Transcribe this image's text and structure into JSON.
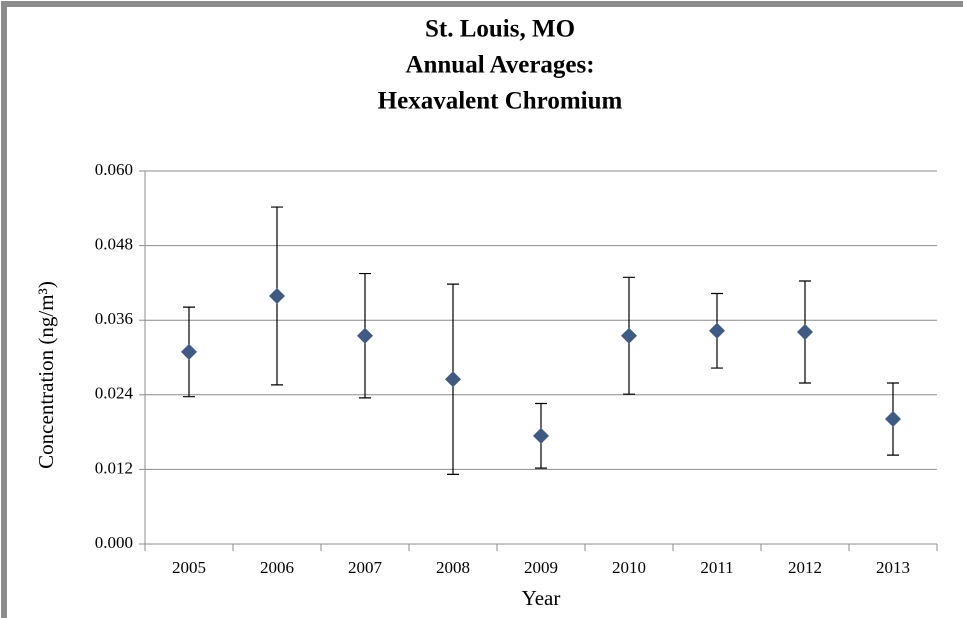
{
  "chart_data": {
    "type": "errorbar",
    "title": [
      "St. Louis, MO",
      "Annual Averages:",
      "Hexavalent Chromium"
    ],
    "x_label": "Year",
    "y_label": "Concentration (ng/m³)",
    "categories": [
      "2005",
      "2006",
      "2007",
      "2008",
      "2009",
      "2010",
      "2011",
      "2012",
      "2013"
    ],
    "values": [
      0.0309,
      0.0399,
      0.0335,
      0.0265,
      0.0174,
      0.0335,
      0.0343,
      0.0341,
      0.0201
    ],
    "errors": [
      0.0072,
      0.0143,
      0.01,
      0.0153,
      0.0052,
      0.0094,
      0.006,
      0.0082,
      0.0058
    ],
    "color": "#3f5a83",
    "ylim": [
      0,
      0.06
    ],
    "yticks": [
      {
        "value": 0,
        "label": "0.000"
      },
      {
        "value": 0.012,
        "label": "0.012"
      },
      {
        "value": 0.024,
        "label": "0.024"
      },
      {
        "value": 0.036,
        "label": "0.036"
      },
      {
        "value": 0.048,
        "label": "0.048"
      },
      {
        "value": 0.06,
        "label": "0.060"
      }
    ],
    "grid": true
  }
}
